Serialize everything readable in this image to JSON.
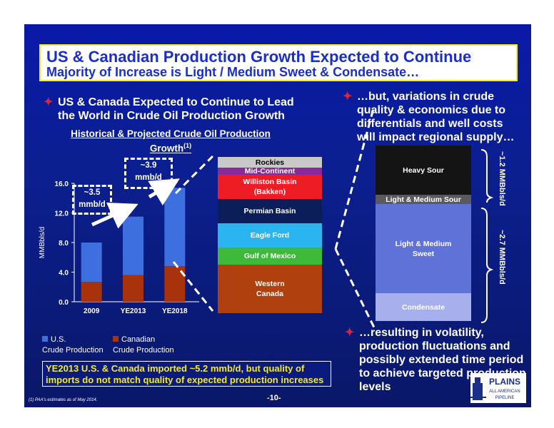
{
  "title": "US & Canadian Production Growth Expected to Continue",
  "subtitle": "Majority of Increase is Light / Medium Sweet  & Condensate…",
  "left_bullet": {
    "line1": "US & Canada Expected to Continue to Lead",
    "line2": "the World in Crude Oil Production Growth"
  },
  "right_bullet_top": {
    "line1": "…but, variations in crude",
    "line2": "quality & economics due to",
    "line3": "differentials and well costs",
    "line4": "will impact regional supply…"
  },
  "right_bullet_bottom": {
    "line1": "…resulting in volatility,",
    "line2": "production fluctuations and",
    "line3": "possibly extended time period",
    "line4": "to achieve targeted production",
    "line5": "levels"
  },
  "chart_title": {
    "line1": "Historical & Projected Crude Oil Production",
    "line2": "Growth",
    "footnote_ref": "(1)"
  },
  "chart_data": {
    "type": "bar",
    "stacked": true,
    "categories": [
      "2009",
      "YE2013",
      "YE2018"
    ],
    "series": [
      {
        "name": "Canadian Crude Production",
        "values": [
          2.7,
          3.6,
          4.8
        ],
        "color": "#a8320c"
      },
      {
        "name": "U.S. Crude Production",
        "values": [
          5.3,
          7.9,
          10.6
        ],
        "color": "#3d6fe0"
      }
    ],
    "ylabel": "MMBbls/d",
    "ylim": [
      0,
      16
    ],
    "yticks": [
      "0.0",
      "4.0",
      "8.0",
      "12.0",
      "16.0"
    ],
    "grid": false,
    "legend": "bottom"
  },
  "legend": {
    "us_line1": "U.S.",
    "us_line2": "Crude Production",
    "ca_line1": "Canadian",
    "ca_line2": "Crude Production"
  },
  "callouts": {
    "c1_line1": "~3.5",
    "c1_line2": "mmb/d",
    "c2_line1": "~3.9",
    "c2_line2": "mmb/d"
  },
  "basin_stack": [
    {
      "label": "Rockies",
      "color": "#c9c9c9",
      "text_color": "#000000"
    },
    {
      "label": "Mid-Continent",
      "color": "#8a2a9a",
      "text_color": "#ffffff"
    },
    {
      "label": "Williston Basin (Bakken)",
      "line1": "Williston Basin",
      "line2": "(Bakken)",
      "color": "#ee1c25",
      "text_color": "#ffffff"
    },
    {
      "label": "Permian Basin",
      "color": "#0b1e5a",
      "text_color": "#ffffff"
    },
    {
      "label": "Eagle Ford",
      "color": "#2ab4f0",
      "text_color": "#ffffff"
    },
    {
      "label": "Gulf of Mexico",
      "color": "#3fb93a",
      "text_color": "#ffffff"
    },
    {
      "label": "Western Canada",
      "line1": "Western",
      "line2": "Canada",
      "color": "#b0400e",
      "text_color": "#ffffff"
    }
  ],
  "quality_stack": [
    {
      "label": "Heavy Sour",
      "color": "#141414",
      "text_color": "#ffffff"
    },
    {
      "label": "Light & Medium Sour",
      "color": "#5a5a5a",
      "text_color": "#ffffff"
    },
    {
      "label": "Light & Medium Sweet",
      "line1": "Light & Medium",
      "line2": "Sweet",
      "color": "#5f72d8",
      "text_color": "#ffffff"
    },
    {
      "label": "Condensate",
      "color": "#a7b0ec",
      "text_color": "#ffffff"
    }
  ],
  "brace_labels": {
    "upper": "~1.2 MMBbls/d",
    "lower": "~2.7 MMBbls/d"
  },
  "import_note": {
    "line1": "YE2013 U.S. & Canada imported ~5.2 mmb/d, but quality of",
    "line2": "imports do not match quality of expected production increases"
  },
  "footnote": "(1) PAA's estimates as of May 2014.",
  "page_number": "-10-",
  "logo": {
    "name": "PLAINS",
    "line2": "ALL AMERICAN",
    "line3": "PIPELINE"
  },
  "colors": {
    "background": "#0b1f8f",
    "title_text": "#1a2fc8",
    "title_border": "#f2ea2a",
    "bullet_mark": "#e0233a",
    "import_text": "#f2ea2a"
  }
}
